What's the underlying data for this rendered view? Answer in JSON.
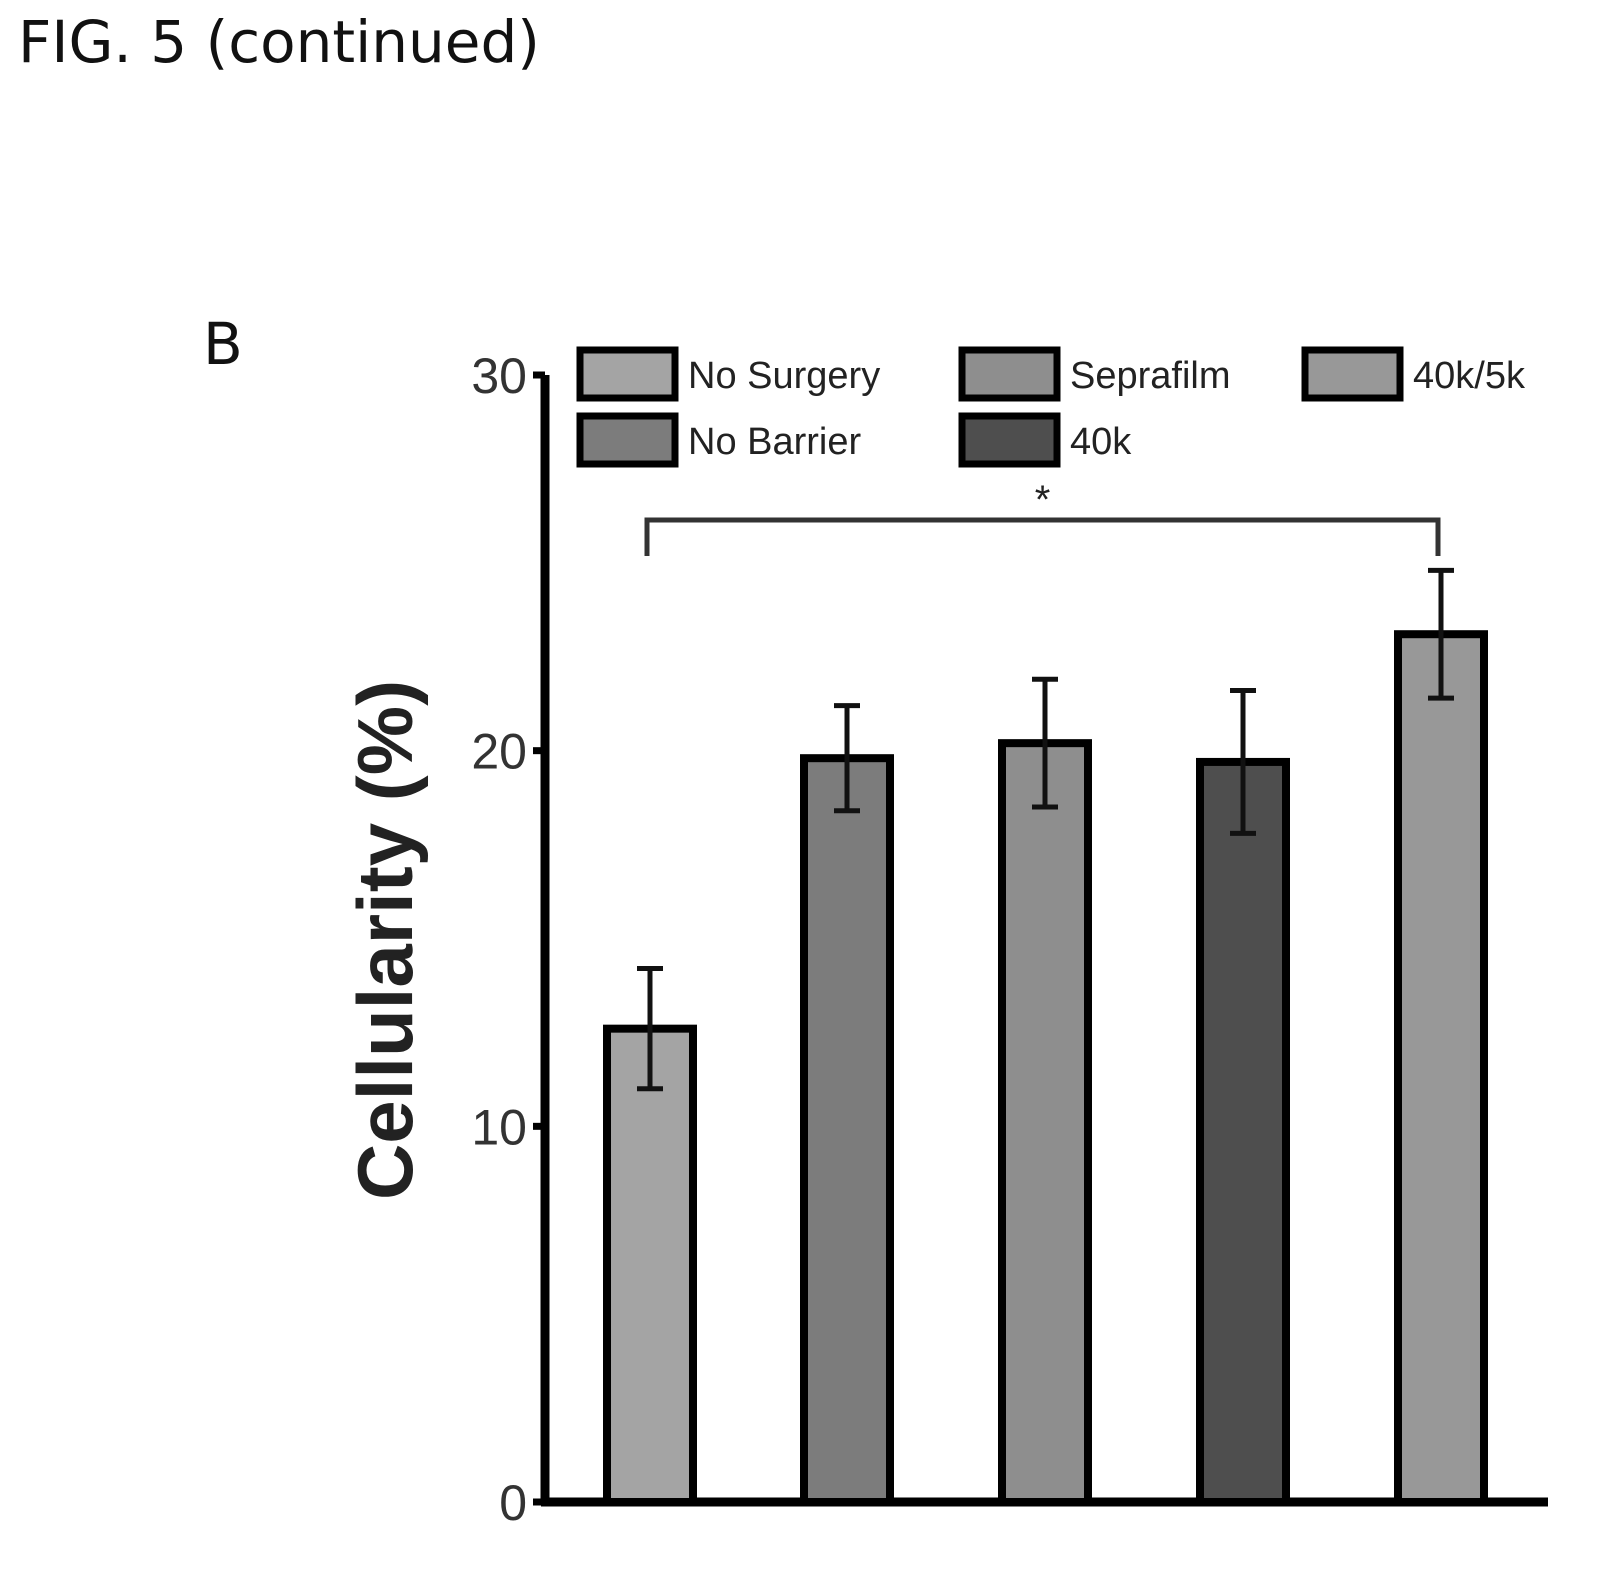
{
  "figure_title": "FIG. 5 (continued)",
  "panel_label": "B",
  "chart_data": {
    "type": "bar",
    "title": "",
    "xlabel": "",
    "ylabel": "Cellularity (%)",
    "ylim": [
      0,
      30
    ],
    "yticks": [
      0,
      10,
      20,
      30
    ],
    "grid": false,
    "legend_position": "top",
    "categories": [
      "No Surgery",
      "No Barrier",
      "Seprafilm",
      "40k",
      "40k/5k"
    ],
    "values": [
      12.6,
      19.8,
      20.2,
      19.7,
      23.1
    ],
    "errors": [
      1.6,
      1.4,
      1.7,
      1.9,
      1.7
    ],
    "colors": [
      "#a4a4a4",
      "#7c7c7c",
      "#8e8e8e",
      "#4e4e4e",
      "#989898"
    ],
    "significance": [
      {
        "from": "No Surgery",
        "to": "40k/5k",
        "label": "*"
      }
    ],
    "legend": [
      {
        "label": "No Surgery",
        "color": "#a4a4a4"
      },
      {
        "label": "Seprafilm",
        "color": "#8e8e8e"
      },
      {
        "label": "40k/5k",
        "color": "#989898"
      },
      {
        "label": "No Barrier",
        "color": "#7c7c7c"
      },
      {
        "label": "40k",
        "color": "#4e4e4e"
      }
    ]
  }
}
